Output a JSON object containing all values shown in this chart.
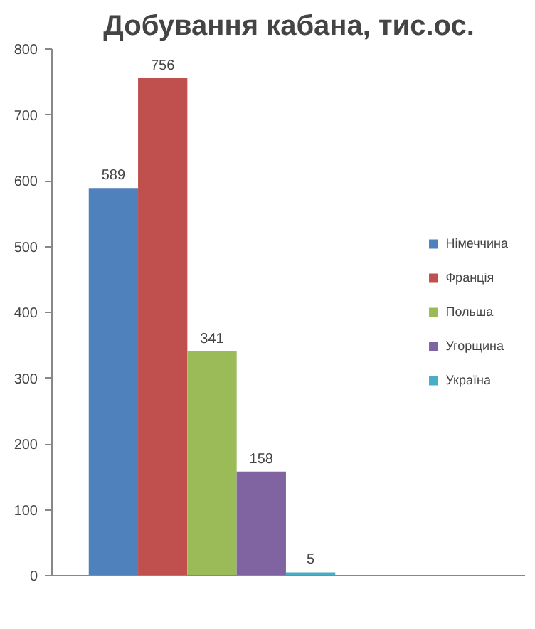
{
  "chart_data": {
    "type": "bar",
    "title": "Добування кабана, тис.ос.",
    "categories": [
      null
    ],
    "ylim": [
      0,
      800
    ],
    "yticks": [
      0,
      100,
      200,
      300,
      400,
      500,
      600,
      700,
      800
    ],
    "grid": false,
    "legend": "right",
    "data_labels": true,
    "series": [
      {
        "name": "Німеччина",
        "color": "#4f81bd",
        "values": [
          589
        ]
      },
      {
        "name": "Франція",
        "color": "#c0504d",
        "values": [
          756
        ]
      },
      {
        "name": "Польша",
        "color": "#9bbb59",
        "values": [
          341
        ]
      },
      {
        "name": "Угорщина",
        "color": "#8064a2",
        "values": [
          158
        ]
      },
      {
        "name": "Україна",
        "color": "#4bacc6",
        "values": [
          5
        ]
      }
    ]
  }
}
